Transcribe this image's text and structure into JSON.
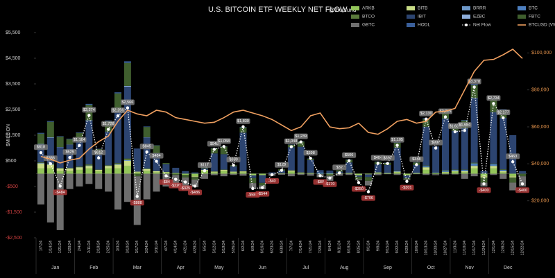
{
  "chart_data": {
    "type": "stacked-bar-line",
    "title": "U.S. BITCOIN ETF WEEKLY NET FLOW",
    "subtitle": "@thepfund",
    "y_label": "$MILLION",
    "categories": [
      "1/7/24",
      "1/14/24",
      "1/21/24",
      "1/28/24",
      "2/4/24",
      "2/11/24",
      "2/18/24",
      "2/25/24",
      "3/3/24",
      "3/10/24",
      "3/17/24",
      "3/24/24",
      "3/31/24",
      "4/7/24",
      "4/14/24",
      "4/21/24",
      "4/28/24",
      "5/5/24",
      "5/12/24",
      "5/19/24",
      "5/26/24",
      "6/2/24",
      "6/9/24",
      "6/16/24",
      "6/23/24",
      "6/30/24",
      "7/7/24",
      "7/14/24",
      "7/21/24",
      "7/28/24",
      "8/4/24",
      "8/11/24",
      "8/18/24",
      "8/25/24",
      "9/1/24",
      "9/8/24",
      "9/15/24",
      "9/22/24",
      "9/29/24",
      "10/6/24",
      "10/13/24",
      "10/20/24",
      "10/27/24",
      "11/3/24",
      "11/10/24",
      "11/17/24",
      "11/24/24",
      "12/1/24",
      "12/8/24",
      "12/15/24",
      "12/22/24"
    ],
    "months": [
      "Jan",
      "Feb",
      "Mar",
      "Apr",
      "May",
      "Jun",
      "Jul",
      "Aug",
      "Sep",
      "Oct",
      "Nov",
      "Dec"
    ],
    "ylim": [
      -2500,
      5500
    ],
    "yticks": [
      {
        "value": -2500,
        "label": "-$2,500"
      },
      {
        "value": -1500,
        "label": "-$1,500"
      },
      {
        "value": -500,
        "label": "-$500"
      },
      {
        "value": 500,
        "label": "$500"
      },
      {
        "value": 1500,
        "label": "$1,500"
      },
      {
        "value": 2500,
        "label": "$2,500"
      },
      {
        "value": 3500,
        "label": "$3,500"
      },
      {
        "value": 4500,
        "label": "$4,500"
      },
      {
        "value": 5500,
        "label": "$5,500"
      }
    ],
    "y2lim": [
      0,
      111000
    ],
    "y2ticks": [
      {
        "value": 20000,
        "label": "$20,000"
      },
      {
        "value": 40000,
        "label": "$40,000"
      },
      {
        "value": 60000,
        "label": "$60,000"
      },
      {
        "value": 80000,
        "label": "$80,000"
      },
      {
        "value": 100000,
        "label": "$100,000"
      }
    ],
    "series": [
      {
        "name": "ARKB",
        "color": "#93c55a",
        "values": [
          200,
          200,
          100,
          100,
          150,
          200,
          100,
          200,
          200,
          300,
          50,
          100,
          50,
          50,
          20,
          -50,
          -100,
          100,
          50,
          100,
          50,
          50,
          -50,
          -40,
          0,
          10,
          80,
          20,
          20,
          0,
          -20,
          10,
          20,
          -50,
          -20,
          30,
          20,
          50,
          -50,
          20,
          150,
          20,
          50,
          80,
          50,
          200,
          -100,
          200,
          50,
          -100,
          0
        ]
      },
      {
        "name": "BITB",
        "color": "#c9dc86",
        "values": [
          200,
          150,
          100,
          100,
          100,
          100,
          50,
          100,
          150,
          200,
          30,
          80,
          50,
          20,
          10,
          0,
          -30,
          50,
          30,
          50,
          30,
          40,
          -20,
          -20,
          0,
          10,
          40,
          20,
          10,
          0,
          -10,
          10,
          10,
          -20,
          -10,
          20,
          10,
          30,
          -20,
          10,
          100,
          10,
          20,
          30,
          50,
          100,
          -50,
          100,
          50,
          -50,
          0
        ]
      },
      {
        "name": "BRRR",
        "color": "#6d98c9",
        "values": [
          20,
          20,
          10,
          10,
          10,
          20,
          0,
          10,
          20,
          30,
          0,
          10,
          0,
          0,
          0,
          0,
          0,
          0,
          0,
          0,
          0,
          0,
          0,
          0,
          0,
          0,
          0,
          0,
          0,
          0,
          0,
          0,
          0,
          0,
          0,
          0,
          0,
          0,
          0,
          0,
          10,
          0,
          10,
          10,
          10,
          20,
          0,
          10,
          10,
          0,
          0
        ]
      },
      {
        "name": "BTC",
        "color": "#4d7fbf",
        "values": [
          0,
          0,
          0,
          0,
          0,
          0,
          0,
          0,
          0,
          0,
          0,
          0,
          0,
          0,
          0,
          0,
          0,
          0,
          0,
          0,
          0,
          0,
          0,
          0,
          0,
          0,
          0,
          0,
          0,
          40,
          20,
          10,
          10,
          0,
          0,
          10,
          10,
          20,
          0,
          10,
          40,
          20,
          40,
          30,
          40,
          80,
          0,
          60,
          40,
          0,
          0
        ]
      },
      {
        "name": "BTCO",
        "color": "#5a7a3a",
        "values": [
          20,
          30,
          20,
          20,
          20,
          40,
          10,
          20,
          40,
          60,
          0,
          20,
          0,
          0,
          0,
          0,
          0,
          0,
          10,
          10,
          0,
          10,
          0,
          0,
          0,
          0,
          10,
          10,
          0,
          0,
          0,
          0,
          0,
          0,
          0,
          0,
          0,
          10,
          0,
          0,
          20,
          0,
          20,
          10,
          10,
          30,
          0,
          20,
          20,
          0,
          0
        ]
      },
      {
        "name": "IBIT",
        "color": "#2c4470",
        "values": [
          700,
          1000,
          800,
          900,
          1000,
          1700,
          600,
          1300,
          2000,
          2800,
          900,
          1200,
          700,
          300,
          200,
          100,
          50,
          50,
          700,
          600,
          200,
          1500,
          -100,
          -300,
          50,
          100,
          900,
          1000,
          500,
          100,
          100,
          50,
          400,
          -50,
          -100,
          300,
          300,
          900,
          -100,
          300,
          1500,
          1000,
          2000,
          1500,
          1600,
          2500,
          100,
          2000,
          2000,
          1500,
          100
        ]
      },
      {
        "name": "EZBC",
        "color": "#8eaedc",
        "values": [
          20,
          20,
          10,
          10,
          10,
          20,
          0,
          10,
          20,
          30,
          0,
          10,
          0,
          0,
          0,
          0,
          0,
          0,
          0,
          0,
          0,
          0,
          0,
          0,
          0,
          0,
          0,
          0,
          0,
          0,
          0,
          0,
          0,
          0,
          0,
          0,
          0,
          0,
          0,
          0,
          10,
          0,
          10,
          10,
          10,
          20,
          0,
          10,
          10,
          0,
          0
        ]
      },
      {
        "name": "FBTC",
        "color": "#3f5e2e",
        "values": [
          400,
          600,
          400,
          200,
          300,
          600,
          200,
          400,
          700,
          900,
          -100,
          400,
          300,
          50,
          -50,
          -100,
          -100,
          50,
          200,
          300,
          50,
          200,
          -200,
          -100,
          0,
          50,
          100,
          200,
          50,
          -20,
          -50,
          50,
          100,
          -100,
          -150,
          100,
          80,
          200,
          -50,
          100,
          300,
          -20,
          300,
          200,
          300,
          500,
          -200,
          500,
          300,
          -200,
          -100
        ]
      },
      {
        "name": "GBTC",
        "color": "#6e6e6e",
        "values": [
          -1200,
          -1900,
          -2200,
          -600,
          -500,
          -400,
          -600,
          -700,
          -1400,
          -1100,
          -1900,
          -1000,
          -700,
          -500,
          -500,
          -500,
          -300,
          -200,
          -60,
          -100,
          -50,
          -80,
          -200,
          -150,
          -80,
          -40,
          -100,
          -50,
          -80,
          -120,
          -200,
          -80,
          -50,
          -40,
          -180,
          -60,
          -20,
          -50,
          -30,
          -20,
          -50,
          -40,
          -30,
          -30,
          -200,
          -100,
          -150,
          -50,
          -200,
          -300,
          -400
        ]
      },
      {
        "name": "HODL",
        "color": "#3a5f9a",
        "values": [
          30,
          30,
          20,
          20,
          20,
          40,
          10,
          30,
          40,
          60,
          0,
          20,
          10,
          0,
          0,
          0,
          0,
          10,
          10,
          10,
          0,
          20,
          0,
          0,
          0,
          0,
          10,
          10,
          10,
          0,
          0,
          0,
          10,
          0,
          0,
          10,
          10,
          20,
          0,
          10,
          30,
          10,
          30,
          20,
          20,
          40,
          0,
          30,
          30,
          0,
          0
        ]
      },
      {
        "name": "Net Flow",
        "color": "#ffffff",
        "kind": "line",
        "values": [
          818,
          386,
          -484,
          629,
          1104,
          2274,
          612,
          1728,
          2256,
          2566,
          -888,
          845,
          484,
          -84,
          -220,
          -325,
          -486,
          117,
          948,
          1058,
          330,
          1830,
          -580,
          -544,
          -40,
          129,
          1048,
          1239,
          598,
          -80,
          -170,
          32,
          506,
          -350,
          -706,
          404,
          397,
          1105,
          -301,
          348,
          2130,
          997,
          2215,
          1634,
          1684,
          3378,
          -400,
          2734,
          2177,
          463,
          -400
        ],
        "value_labels": [
          "$818",
          "$386",
          "-$484",
          "$629",
          "$1,104",
          "$2,274",
          "$612",
          "$1,728",
          "$2,256",
          "$2,566",
          "-$888",
          "$845",
          "$484",
          "-$84",
          "-$220",
          "-$325",
          "-$486",
          "$117",
          "$948",
          "$1,058",
          "$330",
          "$1,830",
          "-$580",
          "-$544",
          "-$40",
          "$129",
          "$1,048",
          "$1,239",
          "$598",
          "-$80",
          "-$170",
          "$32",
          "$506",
          "-$350",
          "-$706",
          "$404",
          "$397",
          "$1,105",
          "-$301",
          "$348",
          "$2,130",
          "$997",
          "$2,215",
          "$1,634",
          "$1,684",
          "$3,378",
          "-$400",
          "$2,734",
          "$2,177",
          "$463",
          "-$400"
        ]
      },
      {
        "name": "BTCUSD (VWAP)",
        "color": "#f0a060",
        "kind": "line",
        "axis": "y2",
        "values": [
          44000,
          42500,
          40500,
          42000,
          43000,
          48000,
          52000,
          55000,
          63000,
          69000,
          67000,
          66000,
          69000,
          68000,
          65000,
          64000,
          63000,
          62000,
          62500,
          65000,
          68000,
          69000,
          67500,
          66000,
          64000,
          61000,
          58000,
          60000,
          66000,
          67500,
          60000,
          59000,
          59500,
          62000,
          57000,
          56000,
          59000,
          63000,
          64000,
          62000,
          63000,
          68000,
          68500,
          70000,
          80000,
          90000,
          96000,
          96500,
          99000,
          102000,
          97000
        ]
      }
    ]
  }
}
